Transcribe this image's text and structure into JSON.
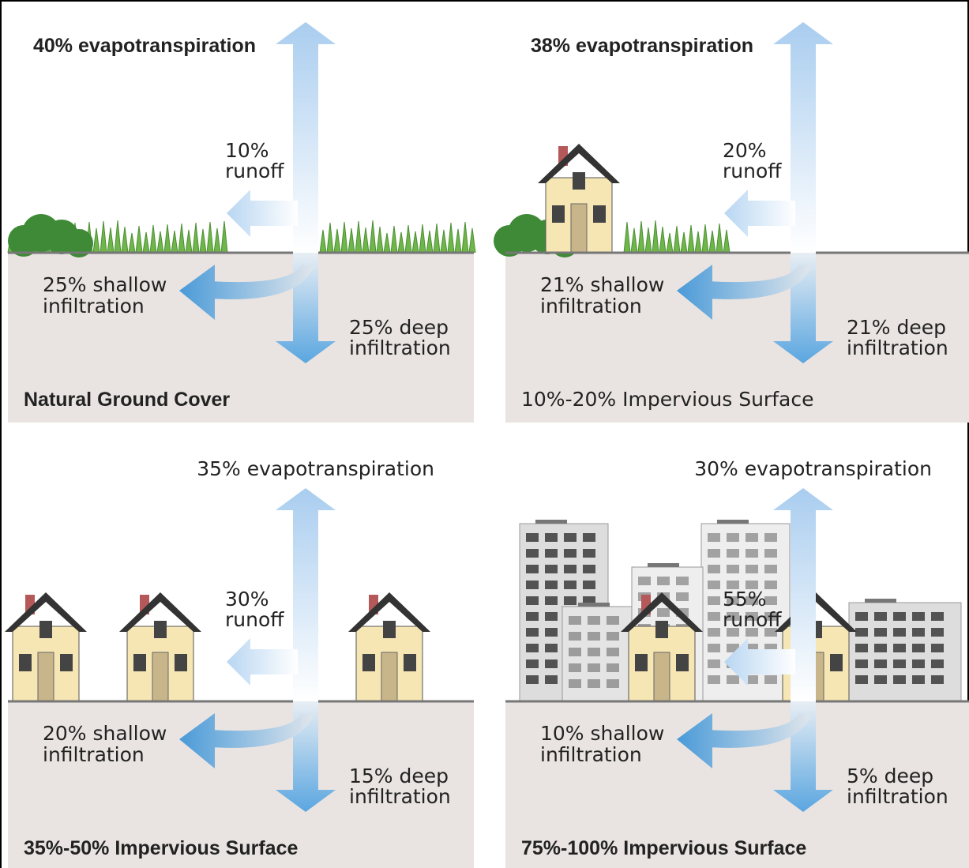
{
  "panels": [
    {
      "evapotranspiration": "40% evapotranspiration",
      "runoff": [
        "10%",
        "runoff"
      ],
      "shallow": [
        "25% shallow",
        "infiltration"
      ],
      "deep": [
        "25% deep",
        "infiltration"
      ],
      "title": "Natural Ground Cover"
    },
    {
      "evapotranspiration": "38% evapotranspiration",
      "runoff": [
        "20%",
        "runoff"
      ],
      "shallow": [
        "21% shallow",
        "infiltration"
      ],
      "deep": [
        "21% deep",
        "infiltration"
      ],
      "title": "10%-20% Impervious Surface"
    },
    {
      "evapotranspiration": "35% evapotranspiration",
      "runoff": [
        "30%",
        "runoff"
      ],
      "shallow": [
        "20% shallow",
        "infiltration"
      ],
      "deep": [
        "15% deep",
        "infiltration"
      ],
      "title": "35%-50% Impervious Surface"
    },
    {
      "evapotranspiration": "30% evapotranspiration",
      "runoff": [
        "55%",
        "runoff"
      ],
      "shallow": [
        "10% shallow",
        "infiltration"
      ],
      "deep": [
        "5% deep",
        "infiltration"
      ],
      "title": "75%-100% Impervious Surface"
    }
  ]
}
